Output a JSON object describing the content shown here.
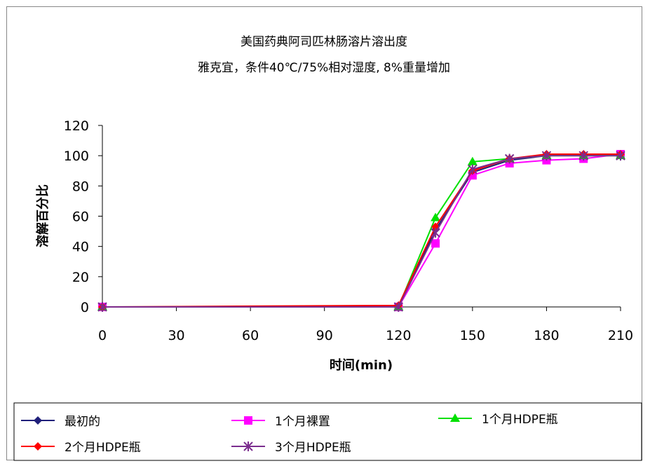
{
  "chart_data": {
    "type": "line",
    "title": "美国药典阿司匹林肠溶片溶出度",
    "subtitle": "雅克宜，条件40℃/75%相对湿度, 8%重量增加",
    "xlabel": "时间(min)",
    "ylabel": "溶解百分比",
    "xlim": [
      0,
      210
    ],
    "ylim": [
      0,
      120
    ],
    "xticks": [
      0,
      30,
      60,
      90,
      120,
      150,
      180,
      210
    ],
    "yticks": [
      0,
      20,
      40,
      60,
      80,
      100,
      120
    ],
    "x": [
      0,
      120,
      135,
      150,
      165,
      180,
      195,
      210
    ],
    "grid": false,
    "legend_position": "bottom",
    "series": [
      {
        "name": "最初的",
        "color": "#1f1f7a",
        "marker": "diamond",
        "values": [
          0,
          0,
          51,
          89,
          97,
          100,
          100,
          100
        ]
      },
      {
        "name": "1个月裸置",
        "color": "#ff00ff",
        "marker": "square",
        "values": [
          0,
          0,
          42,
          87,
          95,
          97,
          98,
          101
        ]
      },
      {
        "name": "1个月HDPE瓶",
        "color": "#00e000",
        "marker": "triangle",
        "values": [
          0,
          0,
          59,
          96,
          98,
          100,
          100,
          100
        ]
      },
      {
        "name": "2个月HDPE瓶",
        "color": "#ff0000",
        "marker": "diamond",
        "values": [
          0,
          1,
          53,
          90,
          98,
          101,
          101,
          101
        ]
      },
      {
        "name": "3个月HDPE瓶",
        "color": "#7b2d8e",
        "marker": "star",
        "values": [
          0,
          0,
          49,
          91,
          98,
          100,
          100,
          100
        ]
      }
    ]
  }
}
